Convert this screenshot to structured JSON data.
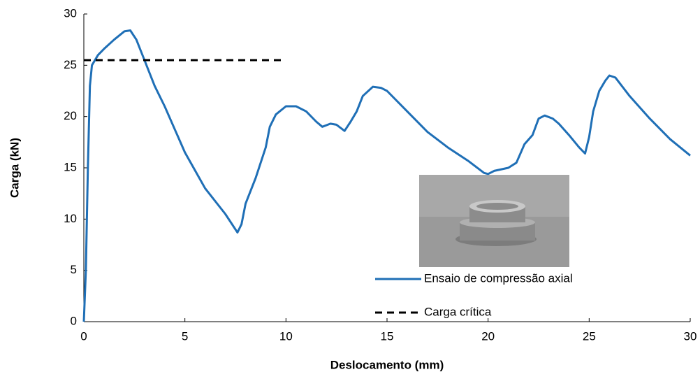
{
  "chart_data": {
    "type": "line",
    "x_label": "Deslocamento (mm)",
    "y_label": "Carga (kN)",
    "xlim": [
      0,
      30
    ],
    "xticks": [
      0,
      5,
      10,
      15,
      20,
      25,
      30
    ],
    "ylim": [
      0,
      30
    ],
    "yticks": [
      0,
      5,
      10,
      15,
      20,
      25,
      30
    ],
    "series": [
      {
        "name": "Ensaio de compressão axial",
        "color": "#1f6fb6",
        "dash": false,
        "x": [
          0,
          0.1,
          0.2,
          0.3,
          0.4,
          0.7,
          1,
          1.5,
          2,
          2.3,
          2.6,
          3,
          3.5,
          4,
          5,
          6,
          7,
          7.6,
          7.8,
          8,
          8.5,
          9,
          9.2,
          9.5,
          10,
          10.5,
          11,
          11.5,
          11.8,
          12.2,
          12.5,
          12.9,
          13.2,
          13.5,
          13.8,
          14.3,
          14.7,
          15,
          16,
          17,
          18,
          19,
          19.8,
          20,
          20.3,
          21,
          21.4,
          21.8,
          22.2,
          22.5,
          22.8,
          23.2,
          23.5,
          24,
          24.5,
          24.8,
          25,
          25.2,
          25.5,
          25.8,
          26,
          26.3,
          27,
          28,
          29,
          30
        ],
        "values": [
          0,
          5,
          15,
          23,
          25,
          26,
          26.6,
          27.5,
          28.3,
          28.4,
          27.5,
          25.5,
          23,
          21,
          16.5,
          13,
          10.5,
          8.7,
          9.5,
          11.5,
          14,
          17,
          19,
          20.2,
          21,
          21,
          20.5,
          19.5,
          19,
          19.3,
          19.2,
          18.6,
          19.5,
          20.5,
          22,
          22.9,
          22.8,
          22.5,
          20.5,
          18.5,
          17,
          15.7,
          14.5,
          14.4,
          14.7,
          15,
          15.5,
          17.3,
          18.2,
          19.8,
          20.1,
          19.8,
          19.3,
          18.2,
          17,
          16.4,
          18,
          20.5,
          22.5,
          23.5,
          24,
          23.8,
          22,
          19.8,
          17.8,
          16.2
        ]
      },
      {
        "name": "Carga crítica",
        "color": "#000000",
        "dash": true,
        "x": [
          0,
          9.8
        ],
        "values": [
          25.5,
          25.5
        ]
      }
    ]
  }
}
